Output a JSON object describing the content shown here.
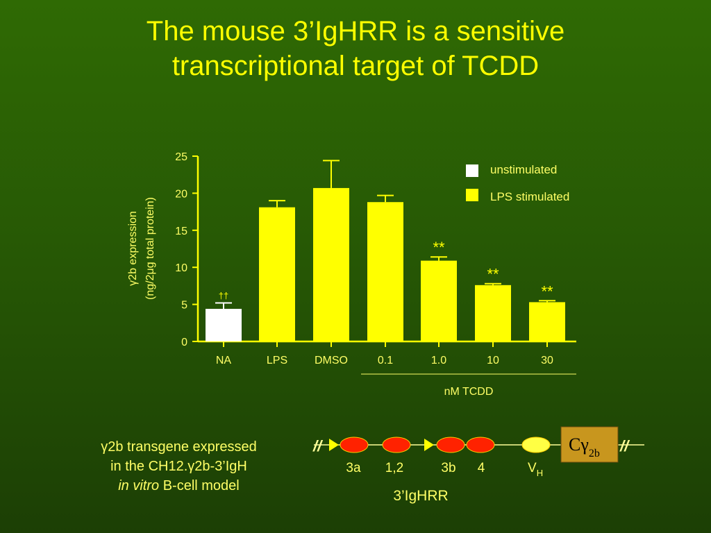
{
  "slide": {
    "title_line1": "The mouse 3’IgHRR is a sensitive",
    "title_line2": "transcriptional target of TCDD"
  },
  "chart_data": {
    "type": "bar",
    "categories": [
      "NA",
      "LPS",
      "DMSO",
      "0.1",
      "1.0",
      "10",
      "30"
    ],
    "values": [
      4.4,
      18.1,
      20.7,
      18.8,
      10.9,
      7.6,
      5.3
    ],
    "errors": [
      0.8,
      0.9,
      3.7,
      0.9,
      0.5,
      0.2,
      0.2
    ],
    "groups": [
      "unstimulated",
      "LPS stimulated",
      "LPS stimulated",
      "LPS stimulated",
      "LPS stimulated",
      "LPS stimulated",
      "LPS stimulated"
    ],
    "annotations": [
      "††",
      "",
      "",
      "",
      "**",
      "**",
      "**"
    ],
    "ylabel_line1": "γ2b expression",
    "ylabel_line2": "(ng/2μg total protein)",
    "yticks": [
      0,
      5,
      10,
      15,
      20,
      25
    ],
    "ylim": [
      0,
      25
    ],
    "xgroup_label": "nM TCDD",
    "legend": [
      {
        "label": "unstimulated",
        "color": "#ffffff"
      },
      {
        "label": "LPS stimulated",
        "color": "#ffff00"
      }
    ],
    "legend_position": "top-right",
    "colors": {
      "unstimulated": "#ffffff",
      "stimulated": "#ffff00",
      "axis": "#ffff00",
      "text": "#ffff66"
    }
  },
  "caption": {
    "line1": "γ2b transgene expressed",
    "line2": "in the CH12.γ2b-3’IgH",
    "line3_italic": "in vitro",
    "line3_rest": " B-cell model"
  },
  "diagram": {
    "enhancers": [
      "3a",
      "1,2",
      "3b",
      "4"
    ],
    "vh_label": "V",
    "vh_sub": "H",
    "region_label": "3’IgHRR",
    "constant_label": "Cγ",
    "constant_sub": "2b",
    "break_mark": "//",
    "colors": {
      "enhancer": "#ff2200",
      "vh": "#ffff44",
      "constant_box": "#c8961e",
      "line": "#ffff99"
    }
  }
}
